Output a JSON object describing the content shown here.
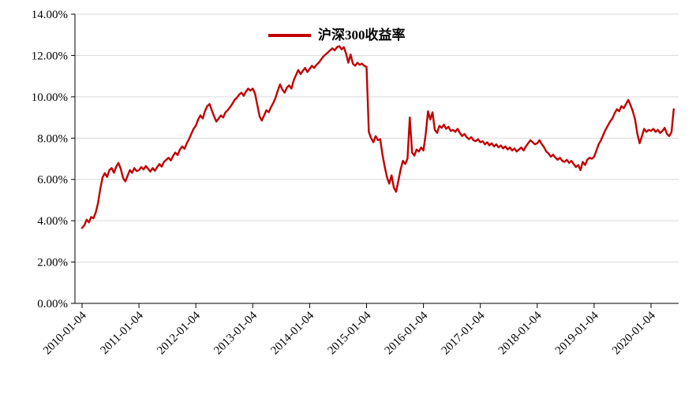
{
  "colors": {
    "line": "#C00000",
    "axis": "#000000",
    "grid": "#D9D9D9",
    "background": "#FFFFFF",
    "text": "#000000"
  },
  "chart_data": {
    "type": "line",
    "title": "",
    "legend": {
      "position": "top-center",
      "entries": [
        {
          "label": "沪深300收益率",
          "color": "#C00000"
        }
      ]
    },
    "x_axis": {
      "label": "",
      "tick_values": [
        2010,
        2011,
        2012,
        2013,
        2014,
        2015,
        2016,
        2017,
        2018,
        2019,
        2020
      ],
      "tick_labels": [
        "2010-01-04",
        "2011-01-04",
        "2012-01-04",
        "2013-01-04",
        "2014-01-04",
        "2015-01-04",
        "2016-01-04",
        "2017-01-04",
        "2018-01-04",
        "2019-01-04",
        "2020-01-04"
      ]
    },
    "y_axis": {
      "label": "",
      "min": 0,
      "max": 14,
      "step": 2,
      "unit": "%",
      "tick_labels": [
        "0.00%",
        "2.00%",
        "4.00%",
        "6.00%",
        "8.00%",
        "10.00%",
        "12.00%",
        "14.00%"
      ]
    },
    "grid": {
      "horizontal": true,
      "vertical": false
    },
    "series": [
      {
        "name": "沪深300收益率",
        "color": "#C00000",
        "x_start": 2010.0,
        "x_step": 0.04,
        "values": [
          3.65,
          3.78,
          4.05,
          3.92,
          4.18,
          4.12,
          4.4,
          4.85,
          5.55,
          6.1,
          6.3,
          6.12,
          6.45,
          6.55,
          6.32,
          6.62,
          6.8,
          6.52,
          6.08,
          5.9,
          6.18,
          6.45,
          6.32,
          6.55,
          6.4,
          6.45,
          6.6,
          6.48,
          6.65,
          6.52,
          6.38,
          6.55,
          6.42,
          6.6,
          6.75,
          6.62,
          6.85,
          6.95,
          7.05,
          6.92,
          7.15,
          7.3,
          7.18,
          7.45,
          7.6,
          7.48,
          7.75,
          7.95,
          8.2,
          8.45,
          8.6,
          8.9,
          9.1,
          8.95,
          9.3,
          9.55,
          9.65,
          9.35,
          9.05,
          8.8,
          8.95,
          9.1,
          9.0,
          9.25,
          9.35,
          9.5,
          9.65,
          9.85,
          9.95,
          10.1,
          10.2,
          10.05,
          10.25,
          10.4,
          10.3,
          10.4,
          10.15,
          9.6,
          9.05,
          8.85,
          9.1,
          9.35,
          9.25,
          9.5,
          9.7,
          9.95,
          10.3,
          10.6,
          10.35,
          10.2,
          10.45,
          10.55,
          10.4,
          10.8,
          11.05,
          11.3,
          11.1,
          11.25,
          11.4,
          11.2,
          11.35,
          11.5,
          11.4,
          11.55,
          11.65,
          11.8,
          11.95,
          12.05,
          12.15,
          12.25,
          12.35,
          12.25,
          12.4,
          12.45,
          12.3,
          12.4,
          12.1,
          11.65,
          12.05,
          11.6,
          11.5,
          11.65,
          11.55,
          11.6,
          11.5,
          11.45,
          8.3,
          8.0,
          7.8,
          8.1,
          7.9,
          7.95,
          7.2,
          6.6,
          6.1,
          5.8,
          6.2,
          5.6,
          5.4,
          5.95,
          6.5,
          6.9,
          6.75,
          7.0,
          9.0,
          7.3,
          7.15,
          7.45,
          7.35,
          7.55,
          7.4,
          8.2,
          9.3,
          8.9,
          9.25,
          8.4,
          8.25,
          8.6,
          8.5,
          8.65,
          8.45,
          8.55,
          8.35,
          8.4,
          8.3,
          8.45,
          8.25,
          8.1,
          8.2,
          8.05,
          7.95,
          8.05,
          7.9,
          7.85,
          7.95,
          7.8,
          7.85,
          7.7,
          7.8,
          7.65,
          7.75,
          7.6,
          7.7,
          7.55,
          7.65,
          7.5,
          7.6,
          7.45,
          7.55,
          7.4,
          7.5,
          7.35,
          7.45,
          7.55,
          7.4,
          7.6,
          7.75,
          7.9,
          7.8,
          7.7,
          7.75,
          7.9,
          7.7,
          7.55,
          7.35,
          7.25,
          7.1,
          7.2,
          7.05,
          6.95,
          7.05,
          6.9,
          6.85,
          6.95,
          6.8,
          6.9,
          6.75,
          6.6,
          6.7,
          6.45,
          6.85,
          6.7,
          6.95,
          7.05,
          7.0,
          7.1,
          7.4,
          7.7,
          7.9,
          8.15,
          8.4,
          8.6,
          8.8,
          8.95,
          9.2,
          9.4,
          9.3,
          9.55,
          9.45,
          9.65,
          9.85,
          9.6,
          9.3,
          8.9,
          8.2,
          7.75,
          8.1,
          8.45,
          8.3,
          8.4,
          8.35,
          8.45,
          8.3,
          8.4,
          8.25,
          8.35,
          8.5,
          8.2,
          8.1,
          8.3,
          9.4
        ]
      }
    ]
  }
}
